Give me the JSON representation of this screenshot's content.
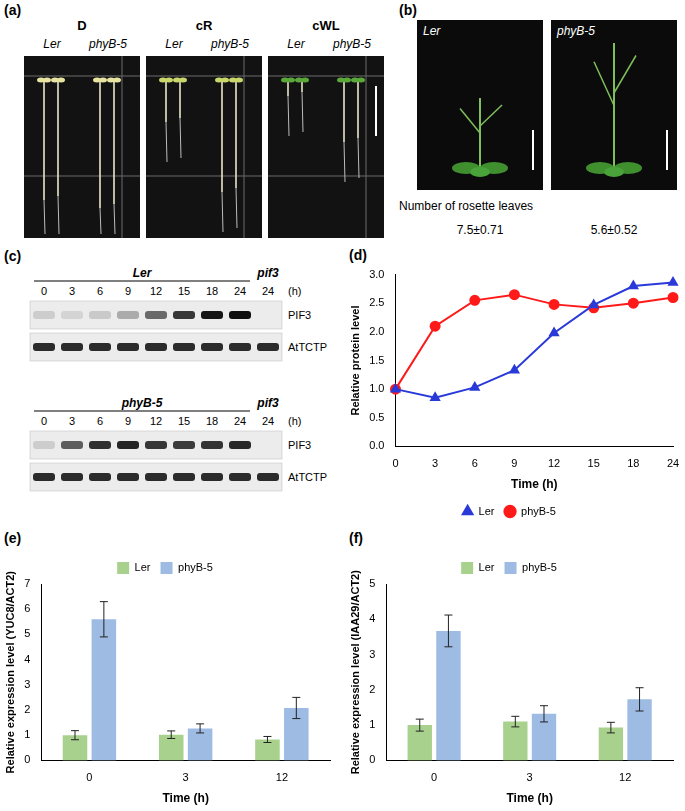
{
  "panels": {
    "a": {
      "label": "(a)",
      "groups": [
        {
          "condition": "D",
          "lanes": [
            "Ler",
            "phyB-5"
          ]
        },
        {
          "condition": "cR",
          "lanes": [
            "Ler",
            "phyB-5"
          ]
        },
        {
          "condition": "cWL",
          "lanes": [
            "Ler",
            "phyB-5"
          ]
        }
      ]
    },
    "b": {
      "label": "(b)",
      "row_label": "Number of rosette leaves",
      "plants": [
        {
          "genotype": "Ler",
          "rosette_leaves": "7.5±0.71"
        },
        {
          "genotype": "phyB-5",
          "rosette_leaves": "5.6±0.52"
        }
      ]
    },
    "c": {
      "label": "(c)",
      "blots": [
        {
          "genotype": "Ler",
          "control": "pif3",
          "lanes": [
            "0",
            "3",
            "6",
            "9",
            "12",
            "15",
            "18",
            "24",
            "24"
          ],
          "unit": "(h)",
          "rows": [
            "PIF3",
            "AtTCTP"
          ]
        },
        {
          "genotype": "phyB-5",
          "control": "pif3",
          "lanes": [
            "0",
            "3",
            "6",
            "9",
            "12",
            "15",
            "18",
            "24",
            "24"
          ],
          "unit": "(h)",
          "rows": [
            "PIF3",
            "AtTCTP"
          ]
        }
      ]
    }
  },
  "chart_data": [
    {
      "panel_label": "(d)",
      "type": "line",
      "categories": [
        "0",
        "3",
        "6",
        "9",
        "12",
        "15",
        "18",
        "24"
      ],
      "x_label": "Time (h)",
      "y_label": "Relative protein level",
      "ylim": [
        0,
        3
      ],
      "yticks": [
        {
          "value": 0,
          "label": "0.0"
        },
        {
          "value": 0.5,
          "label": "0.5"
        },
        {
          "value": 1,
          "label": "1.0"
        },
        {
          "value": 1.5,
          "label": "1.5"
        },
        {
          "value": 2,
          "label": "2.0"
        },
        {
          "value": 2.5,
          "label": "2.5"
        },
        {
          "value": 3,
          "label": "3.0"
        }
      ],
      "grid": false,
      "legend": "bottom",
      "series": [
        {
          "name": "Ler",
          "color": "#2a3ad9",
          "marker": "triangle",
          "values": [
            1.0,
            0.85,
            1.03,
            1.33,
            1.98,
            2.47,
            2.8,
            2.86
          ]
        },
        {
          "name": "phyB-5",
          "color": "#ff1a1a",
          "marker": "circle",
          "values": [
            1.0,
            2.1,
            2.55,
            2.65,
            2.48,
            2.42,
            2.5,
            2.6
          ]
        }
      ]
    },
    {
      "panel_label": "(e)",
      "type": "bar",
      "categories": [
        "0",
        "3",
        "12"
      ],
      "x_label": "Time (h)",
      "y_label": "Relative expression level (YUC8/ACT2)",
      "ylim": [
        0,
        7
      ],
      "yticks": [
        0,
        1,
        2,
        3,
        4,
        5,
        6,
        7
      ],
      "grid": false,
      "legend": "top",
      "series": [
        {
          "name": "Ler",
          "color": "#a9d18e",
          "values": [
            1.0,
            1.02,
            0.83
          ],
          "errors": [
            0.18,
            0.15,
            0.12
          ]
        },
        {
          "name": "phyB-5",
          "color": "#9dbbe3",
          "values": [
            5.6,
            1.27,
            2.08
          ],
          "errors": [
            0.7,
            0.18,
            0.42
          ]
        }
      ]
    },
    {
      "panel_label": "(f)",
      "type": "bar",
      "categories": [
        "0",
        "3",
        "12"
      ],
      "x_label": "Time (h)",
      "y_label": "Relative expression level (IAA29/ACT2)",
      "ylim": [
        0,
        5
      ],
      "yticks": [
        0,
        1,
        2,
        3,
        4,
        5
      ],
      "grid": false,
      "legend": "top",
      "series": [
        {
          "name": "Ler",
          "color": "#a9d18e",
          "values": [
            1.0,
            1.1,
            0.93
          ],
          "errors": [
            0.17,
            0.15,
            0.15
          ]
        },
        {
          "name": "phyB-5",
          "color": "#9dbbe3",
          "values": [
            3.67,
            1.32,
            1.73
          ],
          "errors": [
            0.45,
            0.23,
            0.33
          ]
        }
      ]
    }
  ]
}
